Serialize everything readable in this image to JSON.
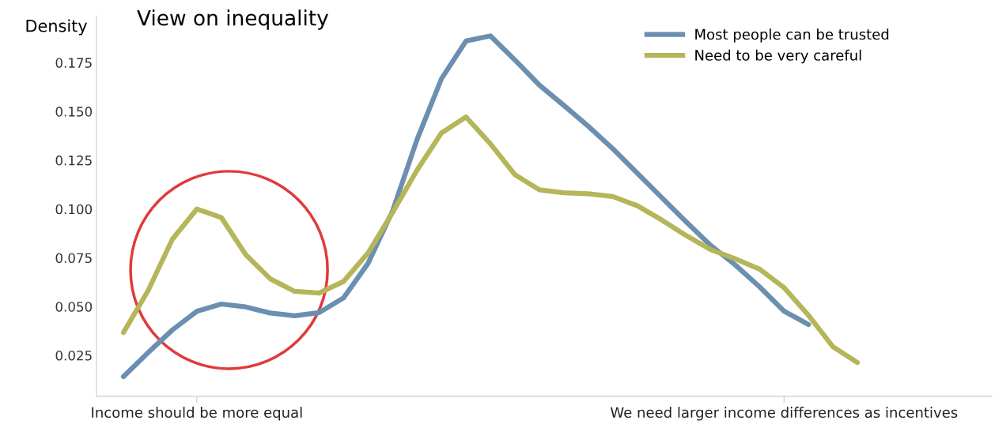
{
  "chart_data": {
    "type": "line",
    "title": "View on inequality",
    "ylabel": "Density",
    "categories": [
      null,
      null,
      null,
      "Income should be more equal",
      null,
      null,
      null,
      null,
      null,
      null,
      null,
      null,
      null,
      null,
      null,
      null,
      null,
      null,
      null,
      null,
      null,
      null,
      null,
      null,
      null,
      null,
      null,
      "We need larger income differences as incentives",
      null,
      null,
      null
    ],
    "ylim": [
      0.004,
      0.199
    ],
    "yticks": [
      {
        "value": 0.025,
        "label": "0.025"
      },
      {
        "value": 0.05,
        "label": "0.050"
      },
      {
        "value": 0.075,
        "label": "0.075"
      },
      {
        "value": 0.1,
        "label": "0.100"
      },
      {
        "value": 0.125,
        "label": "0.125"
      },
      {
        "value": 0.15,
        "label": "0.150"
      },
      {
        "value": 0.175,
        "label": "0.175"
      }
    ],
    "grid": false,
    "legend": "top right",
    "marker": "none",
    "line_style": "solid",
    "series": [
      {
        "name": "Most people can be trusted",
        "color": "#6b8fb0",
        "values": [
          0.0141,
          0.0263,
          0.038,
          0.0476,
          0.0513,
          0.0498,
          0.0467,
          0.0453,
          0.0469,
          0.0545,
          0.0722,
          0.099,
          0.1356,
          0.1668,
          0.1861,
          0.1887,
          0.1764,
          0.1635,
          0.1531,
          0.1424,
          0.1309,
          0.1184,
          0.1059,
          0.0934,
          0.0814,
          0.0714,
          0.0601,
          0.0477,
          0.0408,
          null,
          null
        ]
      },
      {
        "name": "Need to be very careful",
        "color": "#b5b55a",
        "values": [
          0.0367,
          0.058,
          0.0845,
          0.1,
          0.0956,
          0.0766,
          0.0642,
          0.0578,
          0.0569,
          0.0629,
          0.0775,
          0.0982,
          0.1199,
          0.139,
          0.1472,
          0.1334,
          0.1176,
          0.1098,
          0.1083,
          0.1078,
          0.1064,
          0.1017,
          0.0944,
          0.0864,
          0.0792,
          0.0745,
          0.0692,
          0.0597,
          0.0455,
          0.0294,
          0.0213
        ]
      }
    ]
  }
}
